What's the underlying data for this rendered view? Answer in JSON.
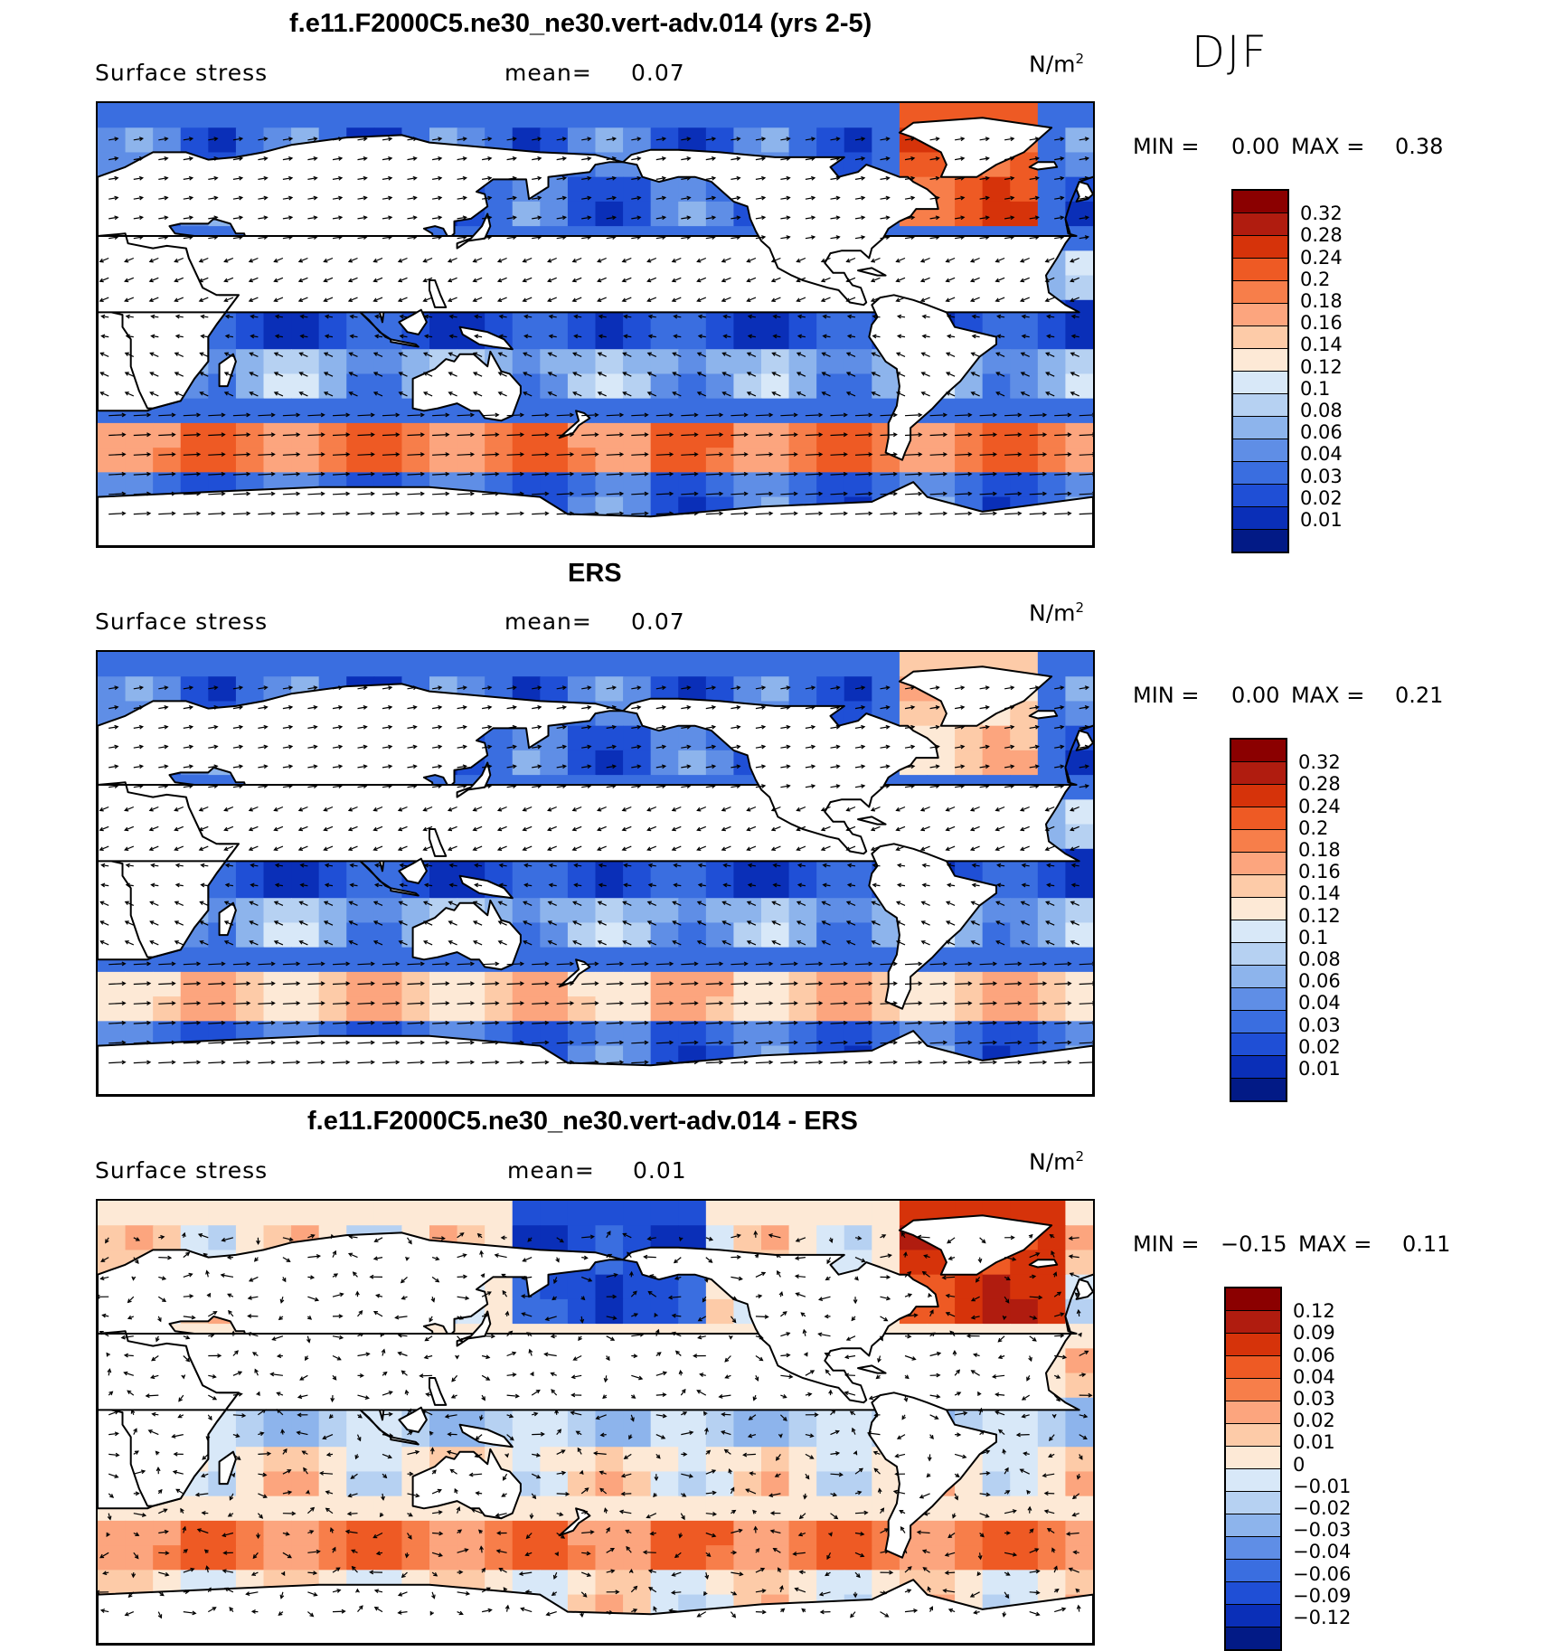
{
  "season": "DJF",
  "panels": [
    {
      "title": "f.e11.F2000C5.ne30_ne30.vert-adv.014 (yrs 2-5)",
      "variable": "Surface stress",
      "mean_label": "mean=",
      "mean_value": "0.07",
      "units": "N/m",
      "units_sup": "2",
      "min_label": "MIN =",
      "min_value": "0.00",
      "max_label": "MAX =",
      "max_value": "0.38",
      "colorbar_levels": [
        "0.32",
        "0.28",
        "0.24",
        "0.2",
        "0.18",
        "0.16",
        "0.14",
        "0.12",
        "0.1",
        "0.08",
        "0.06",
        "0.04",
        "0.03",
        "0.02",
        "0.01"
      ],
      "colorbar_colors": [
        "#8b0000",
        "#b01c0f",
        "#d6330a",
        "#ee5a24",
        "#f77e4a",
        "#fca57e",
        "#fdcba8",
        "#fde9d6",
        "#d8e8f8",
        "#b6d1f2",
        "#8db4ec",
        "#5f8ee6",
        "#3a6ee0",
        "#1f4fd6",
        "#0a2fb8",
        "#021a86"
      ],
      "field_kind": "full"
    },
    {
      "title": "ERS",
      "variable": "Surface stress",
      "mean_label": "mean=",
      "mean_value": "0.07",
      "units": "N/m",
      "units_sup": "2",
      "min_label": "MIN =",
      "min_value": "0.00",
      "max_label": "MAX =",
      "max_value": "0.21",
      "colorbar_levels": [
        "0.32",
        "0.28",
        "0.24",
        "0.2",
        "0.18",
        "0.16",
        "0.14",
        "0.12",
        "0.1",
        "0.08",
        "0.06",
        "0.04",
        "0.03",
        "0.02",
        "0.01"
      ],
      "colorbar_colors": [
        "#8b0000",
        "#b01c0f",
        "#d6330a",
        "#ee5a24",
        "#f77e4a",
        "#fca57e",
        "#fdcba8",
        "#fde9d6",
        "#d8e8f8",
        "#b6d1f2",
        "#8db4ec",
        "#5f8ee6",
        "#3a6ee0",
        "#1f4fd6",
        "#0a2fb8",
        "#021a86"
      ],
      "field_kind": "obs"
    },
    {
      "title": "f.e11.F2000C5.ne30_ne30.vert-adv.014 - ERS",
      "variable": "Surface stress",
      "mean_label": "mean=",
      "mean_value": "0.01",
      "units": "N/m",
      "units_sup": "2",
      "min_label": "MIN =",
      "min_value": "−0.15",
      "max_label": "MAX =",
      "max_value": "0.11",
      "colorbar_levels": [
        "0.12",
        "0.09",
        "0.06",
        "0.04",
        "0.03",
        "0.02",
        "0.01",
        "0",
        "−0.01",
        "−0.02",
        "−0.03",
        "−0.04",
        "−0.06",
        "−0.09",
        "−0.12"
      ],
      "colorbar_colors": [
        "#8b0000",
        "#b01c0f",
        "#d6330a",
        "#ee5a24",
        "#f77e4a",
        "#fca57e",
        "#fdcba8",
        "#fde9d6",
        "#d8e8f8",
        "#b6d1f2",
        "#8db4ec",
        "#5f8ee6",
        "#3a6ee0",
        "#1f4fd6",
        "#0a2fb8",
        "#021a86"
      ],
      "field_kind": "diff"
    }
  ]
}
